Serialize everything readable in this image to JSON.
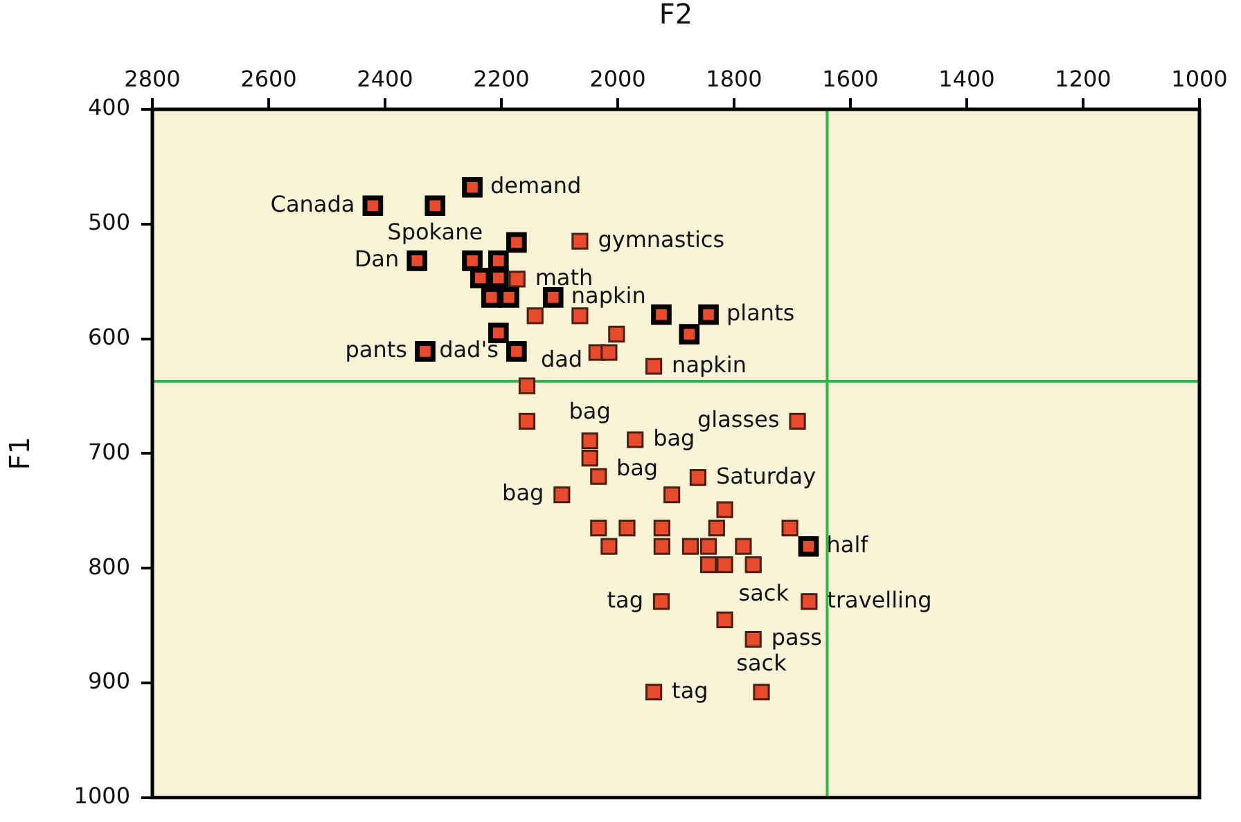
{
  "chart_data": {
    "type": "scatter",
    "xlabel": "F2",
    "ylabel": "F1",
    "xlim": [
      2800,
      1000
    ],
    "xticks": [
      2800,
      2600,
      2400,
      2200,
      2000,
      1800,
      1600,
      1400,
      1200,
      1000
    ],
    "ylim": [
      1000,
      400
    ],
    "yticks": [
      400,
      500,
      600,
      700,
      800,
      900,
      1000
    ],
    "marker": "square",
    "series": [
      {
        "color": "#e84b2c",
        "x": [
          2421,
          2314,
          2250,
          2174,
          2345,
          2250,
          2205,
          2236,
          2205,
          2217,
          2187,
          2111,
          2205,
          2174,
          2331,
          1925,
          1844,
          1877,
          1672
        ],
        "values": [
          484,
          484,
          468,
          516,
          532,
          532,
          532,
          547,
          547,
          564,
          564,
          564,
          595,
          611,
          611,
          579,
          579,
          596,
          781
        ]
      },
      {
        "color": "#e84b2c",
        "x": [
          2173,
          2142,
          2065,
          2065,
          2002,
          2036,
          2015,
          1938,
          2156,
          2156,
          2048,
          2048,
          2033,
          1970,
          2096,
          1907,
          1862,
          1691,
          1816,
          2033,
          1984,
          1924,
          1830,
          1704,
          2015,
          1924,
          1875,
          1844,
          1784,
          1844,
          1816,
          1767,
          1925,
          1816,
          1767,
          1671,
          1938,
          1753
        ],
        "values": [
          548,
          580,
          515,
          580,
          596,
          612,
          612,
          624,
          641,
          672,
          689,
          704,
          720,
          688,
          736,
          736,
          721,
          672,
          749,
          765,
          765,
          765,
          765,
          765,
          781,
          781,
          781,
          781,
          781,
          797,
          797,
          797,
          829,
          845,
          862,
          829,
          908,
          908
        ]
      }
    ],
    "ref_lines": [
      {
        "axis": "x",
        "value": 1640,
        "color": "#2db84a"
      },
      {
        "axis": "y",
        "value": 637,
        "color": "#2db84a"
      }
    ],
    "annotations": [
      {
        "text": "Canada",
        "x": 2421,
        "y": 484
      },
      {
        "text": "demand",
        "x": 2250,
        "y": 468
      },
      {
        "text": "Spokane",
        "x": 2314,
        "y": 484
      },
      {
        "text": "gymnastics",
        "x": 2065,
        "y": 515
      },
      {
        "text": "Dan",
        "x": 2345,
        "y": 532
      },
      {
        "text": "math",
        "x": 2173,
        "y": 548
      },
      {
        "text": "napkin",
        "x": 2111,
        "y": 564
      },
      {
        "text": "plants",
        "x": 1844,
        "y": 579
      },
      {
        "text": "dad's",
        "x": 2174,
        "y": 611
      },
      {
        "text": "pants",
        "x": 2331,
        "y": 611
      },
      {
        "text": "napkin",
        "x": 1938,
        "y": 624
      },
      {
        "text": "dad",
        "x": 2156,
        "y": 641
      },
      {
        "text": "glasses",
        "x": 1691,
        "y": 672
      },
      {
        "text": "bag",
        "x": 2048,
        "y": 689
      },
      {
        "text": "bag",
        "x": 1970,
        "y": 688
      },
      {
        "text": "bag",
        "x": 1907,
        "y": 736
      },
      {
        "text": "Saturday",
        "x": 1862,
        "y": 721
      },
      {
        "text": "bag",
        "x": 2096,
        "y": 736
      },
      {
        "text": "half",
        "x": 1672,
        "y": 781
      },
      {
        "text": "sack",
        "x": 1816,
        "y": 845
      },
      {
        "text": "tag",
        "x": 1925,
        "y": 829
      },
      {
        "text": "travelling",
        "x": 1671,
        "y": 829
      },
      {
        "text": "pass",
        "x": 1767,
        "y": 862
      },
      {
        "text": "tag",
        "x": 1938,
        "y": 908
      },
      {
        "text": "sack",
        "x": 1753,
        "y": 908
      }
    ]
  }
}
